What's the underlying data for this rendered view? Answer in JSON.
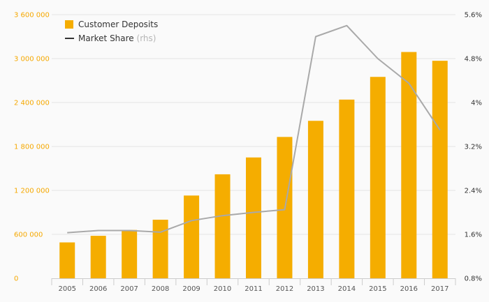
{
  "chart_data": {
    "type": "bar+line",
    "categories": [
      "2005",
      "2006",
      "2007",
      "2008",
      "2009",
      "2010",
      "2011",
      "2012",
      "2013",
      "2014",
      "2015",
      "2016",
      "2017"
    ],
    "series": [
      {
        "name": "Customer Deposits",
        "axis": "left",
        "kind": "bar",
        "values": [
          490000,
          580000,
          660000,
          800000,
          1130000,
          1420000,
          1650000,
          1930000,
          2150000,
          2440000,
          2750000,
          3090000,
          2970000
        ]
      },
      {
        "name": "Market Share",
        "suffix": " (rhs)",
        "axis": "right",
        "kind": "line",
        "values": [
          1.63,
          1.67,
          1.67,
          1.64,
          1.85,
          1.94,
          2.0,
          2.05,
          5.2,
          5.4,
          4.8,
          4.35,
          3.5
        ]
      }
    ],
    "y_left": {
      "min": 0,
      "max": 3600000,
      "ticks": [
        "0",
        "600 000",
        "1 200 000",
        "1 800 000",
        "2 400 000",
        "3 000 000",
        "3 600 000"
      ]
    },
    "y_right": {
      "min": 0.8,
      "max": 5.6,
      "ticks": [
        "0.8%",
        "1.6%",
        "2.4%",
        "3.2%",
        "4%",
        "4.8%",
        "5.6%"
      ]
    },
    "grid": true,
    "legend_position": "top-left",
    "colors": {
      "bar": "#f5ad00",
      "line": "#a9a9a9",
      "left_axis": "#f5a800",
      "grid": "#e4e4e4"
    }
  }
}
